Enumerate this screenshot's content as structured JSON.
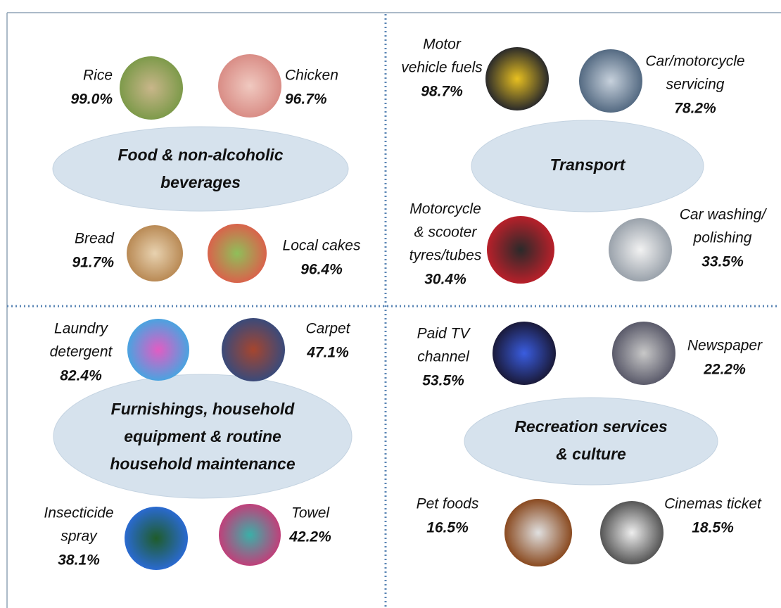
{
  "quadrants": [
    {
      "title": [
        "Food & non-alcoholic",
        "beverages"
      ],
      "items": [
        {
          "label": [
            "Rice"
          ],
          "value": "99.0%"
        },
        {
          "label": [
            "Chicken"
          ],
          "value": "96.7%"
        },
        {
          "label": [
            "Bread"
          ],
          "value": "91.7%"
        },
        {
          "label": [
            "Local cakes"
          ],
          "value": "96.4%"
        }
      ]
    },
    {
      "title": [
        "Transport"
      ],
      "items": [
        {
          "label": [
            "Motor",
            "vehicle fuels"
          ],
          "value": "98.7%"
        },
        {
          "label": [
            "Car/motorcycle",
            "servicing"
          ],
          "value": "78.2%"
        },
        {
          "label": [
            "Motorcycle",
            "& scooter",
            "tyres/tubes"
          ],
          "value": "30.4%"
        },
        {
          "label": [
            "Car washing/",
            "polishing"
          ],
          "value": "33.5%"
        }
      ]
    },
    {
      "title": [
        "Furnishings, household",
        "equipment & routine",
        "household maintenance"
      ],
      "items": [
        {
          "label": [
            "Laundry",
            "detergent"
          ],
          "value": "82.4%"
        },
        {
          "label": [
            "Carpet"
          ],
          "value": "47.1%"
        },
        {
          "label": [
            "Insecticide",
            "spray"
          ],
          "value": "38.1%"
        },
        {
          "label": [
            "Towel"
          ],
          "value": "42.2%"
        }
      ]
    },
    {
      "title": [
        "Recreation services",
        "& culture"
      ],
      "items": [
        {
          "label": [
            "Paid TV",
            "channel"
          ],
          "value": "53.5%"
        },
        {
          "label": [
            "Newspaper"
          ],
          "value": "22.2%"
        },
        {
          "label": [
            "Pet foods"
          ],
          "value": "16.5%"
        },
        {
          "label": [
            "Cinemas ticket"
          ],
          "value": "18.5%"
        }
      ]
    }
  ]
}
